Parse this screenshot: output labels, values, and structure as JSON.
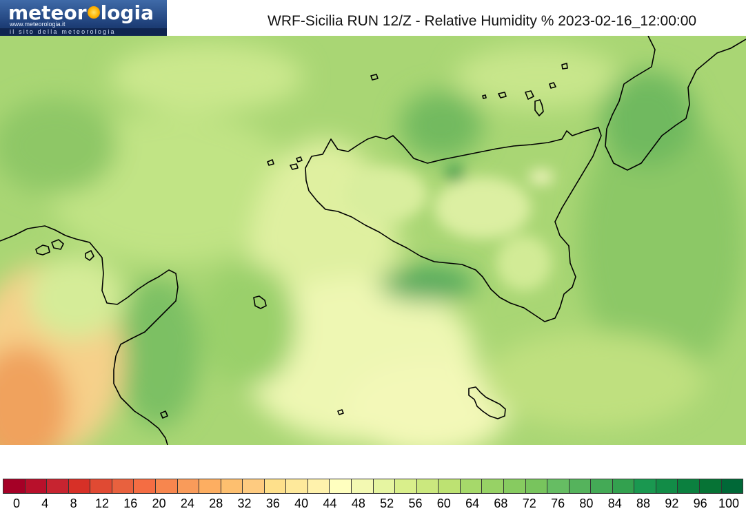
{
  "logo": {
    "name_part1": "meteor",
    "name_part2": "logia",
    "url": "www.meteorologia.it",
    "tagline": "il sito della meteorologia"
  },
  "title": "WRF-Sicilia RUN 12/Z - Relative Humidity % 2023-02-16_12:00:00",
  "legend": {
    "colors": [
      "#a50026",
      "#b8102b",
      "#c72430",
      "#d73027",
      "#e04a33",
      "#e8613e",
      "#f46d43",
      "#f7864e",
      "#f99b5a",
      "#fdae61",
      "#fdbf6f",
      "#fecb80",
      "#fee08b",
      "#fee99b",
      "#fff2ac",
      "#ffffbf",
      "#f3f9b2",
      "#e6f5a1",
      "#d9ef8b",
      "#cbe87e",
      "#bde272",
      "#a6d96a",
      "#97d265",
      "#87cb60",
      "#78c45d",
      "#66bd63",
      "#55b35c",
      "#44aa56",
      "#33a14f",
      "#1a9850",
      "#128c47",
      "#0b803f",
      "#067335",
      "#006837"
    ],
    "ticks": [
      "0",
      "4",
      "8",
      "12",
      "16",
      "20",
      "24",
      "28",
      "32",
      "36",
      "40",
      "44",
      "48",
      "52",
      "56",
      "60",
      "64",
      "68",
      "72",
      "76",
      "80",
      "84",
      "88",
      "92",
      "96",
      "100"
    ]
  },
  "map_colors": {
    "background": "#a9d674",
    "light": "#dbef9c",
    "pale": "#f3f8b8",
    "mid": "#93cd69",
    "dark": "#5aaf5a",
    "darker": "#3e9c4d",
    "orange": "#f1a660",
    "peach": "#f8d28c",
    "coast": "#000000"
  }
}
